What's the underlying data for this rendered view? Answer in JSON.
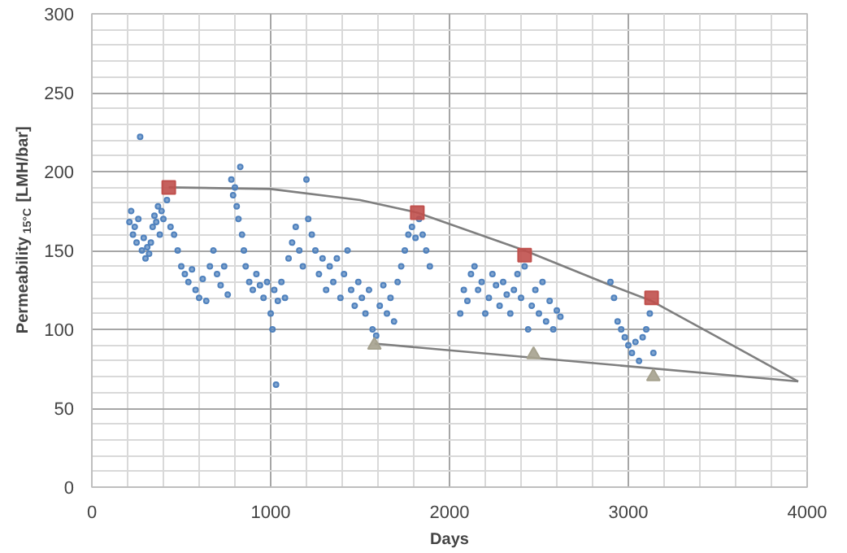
{
  "chart_data": {
    "type": "scatter",
    "xlabel": "Days",
    "ylabel": "Permeability$_{15°C}$ [LMH/bar]",
    "xlim": [
      0,
      4000
    ],
    "xticks": [
      0,
      1000,
      2000,
      3000,
      4000
    ],
    "ylim": [
      0,
      300
    ],
    "yticks": [
      0,
      50,
      100,
      150,
      200,
      250,
      300
    ],
    "grid": true,
    "series": [
      {
        "marker": "circle",
        "color": "#4f81bd",
        "x": [
          210,
          220,
          230,
          240,
          250,
          260,
          270,
          280,
          290,
          300,
          310,
          320,
          330,
          340,
          350,
          360,
          370,
          380,
          390,
          400,
          420,
          440,
          460,
          480,
          500,
          520,
          540,
          560,
          580,
          600,
          620,
          640,
          660,
          680,
          700,
          720,
          740,
          760,
          780,
          790,
          800,
          810,
          820,
          830,
          840,
          850,
          860,
          880,
          900,
          920,
          940,
          960,
          980,
          1000,
          1010,
          1020,
          1030,
          1040,
          1060,
          1080,
          1100,
          1120,
          1140,
          1160,
          1180,
          1200,
          1210,
          1230,
          1250,
          1270,
          1290,
          1310,
          1330,
          1350,
          1370,
          1390,
          1410,
          1430,
          1450,
          1470,
          1490,
          1510,
          1530,
          1550,
          1570,
          1590,
          1610,
          1630,
          1650,
          1670,
          1690,
          1710,
          1730,
          1750,
          1770,
          1790,
          1810,
          1830,
          1850,
          1870,
          1890,
          2060,
          2080,
          2100,
          2120,
          2140,
          2160,
          2180,
          2200,
          2220,
          2240,
          2260,
          2280,
          2300,
          2320,
          2340,
          2360,
          2380,
          2400,
          2420,
          2440,
          2460,
          2480,
          2500,
          2520,
          2540,
          2560,
          2580,
          2600,
          2620,
          2900,
          2920,
          2940,
          2960,
          2980,
          3000,
          3020,
          3040,
          3060,
          3080,
          3100,
          3120,
          3140
        ],
        "values": [
          168,
          175,
          160,
          165,
          155,
          170,
          222,
          150,
          158,
          145,
          152,
          148,
          155,
          165,
          172,
          168,
          178,
          160,
          175,
          170,
          182,
          165,
          160,
          150,
          140,
          135,
          130,
          138,
          125,
          120,
          132,
          118,
          140,
          150,
          135,
          128,
          140,
          122,
          195,
          185,
          190,
          178,
          170,
          203,
          160,
          150,
          140,
          130,
          125,
          135,
          128,
          120,
          130,
          110,
          100,
          125,
          65,
          118,
          130,
          120,
          145,
          155,
          165,
          150,
          140,
          195,
          170,
          160,
          150,
          135,
          145,
          125,
          140,
          130,
          145,
          120,
          135,
          150,
          125,
          115,
          130,
          120,
          110,
          125,
          100,
          96,
          115,
          128,
          110,
          120,
          105,
          130,
          140,
          150,
          160,
          165,
          158,
          170,
          160,
          150,
          140,
          110,
          125,
          118,
          135,
          140,
          125,
          130,
          110,
          120,
          135,
          128,
          115,
          130,
          122,
          110,
          125,
          135,
          120,
          140,
          100,
          115,
          125,
          110,
          130,
          105,
          118,
          100,
          112,
          108,
          130,
          120,
          105,
          100,
          95,
          90,
          85,
          92,
          80,
          95,
          100,
          110,
          85
        ]
      },
      {
        "marker": "square",
        "color": "#c0504d",
        "x": [
          430,
          1820,
          2420,
          3130
        ],
        "values": [
          190,
          174,
          147,
          120
        ]
      },
      {
        "marker": "triangle",
        "color": "#a6a28f",
        "x": [
          1580,
          2470,
          3140
        ],
        "values": [
          90,
          84,
          70
        ]
      },
      {
        "type": "line",
        "color": "#7f7f7f",
        "x": [
          430,
          1000,
          1500,
          1820,
          2420,
          2900,
          3130,
          3500,
          3950
        ],
        "values": [
          190,
          189,
          182,
          174,
          150,
          128,
          118,
          95,
          67
        ]
      },
      {
        "type": "line",
        "color": "#7f7f7f",
        "x": [
          1580,
          3950
        ],
        "values": [
          91,
          67
        ]
      }
    ]
  }
}
